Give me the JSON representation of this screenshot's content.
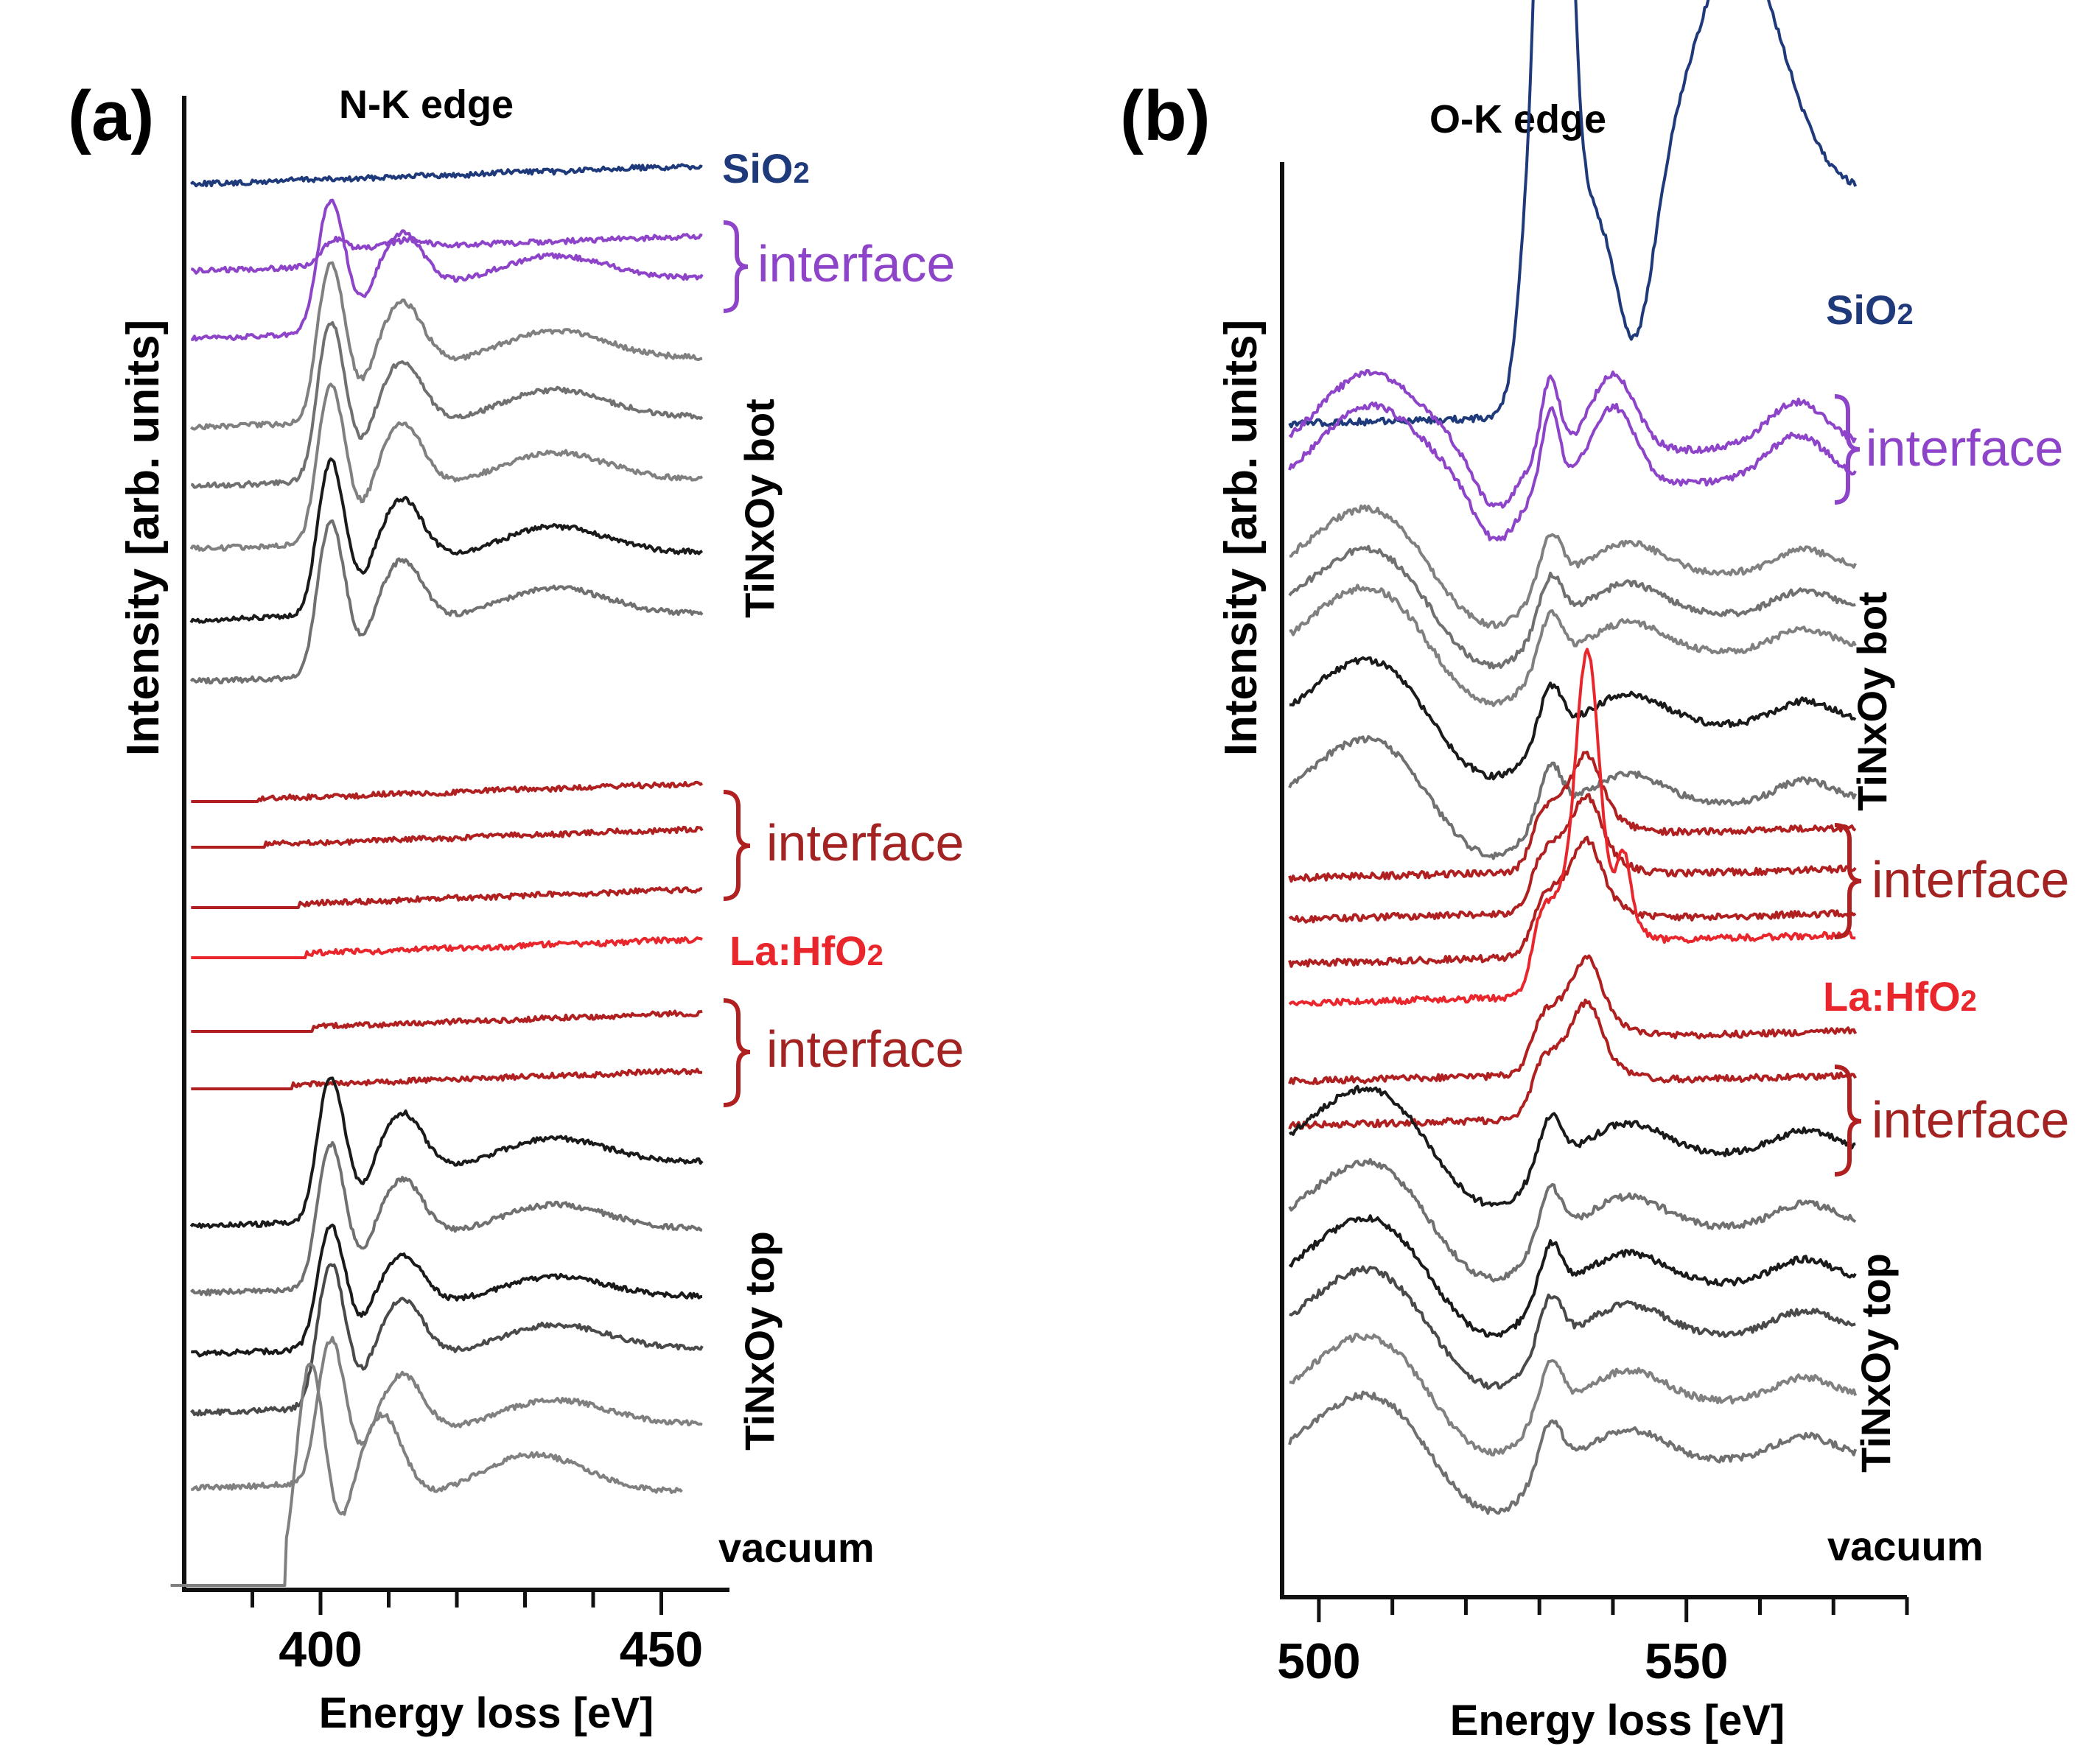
{
  "chart_data": [
    {
      "type": "line",
      "panel": "(a)",
      "title": "N-K edge",
      "xlabel": "Energy loss [eV]",
      "ylabel": "Intensity [arb. units]",
      "xlim": [
        380,
        460
      ],
      "xticks_major": [
        400,
        450
      ],
      "xtick_labels": [
        "400",
        "450"
      ],
      "xticks_minor": [
        390,
        410,
        420,
        430,
        440
      ],
      "series": [
        {
          "name": "SiO2",
          "color": "#1f3a7a",
          "shape": "flat",
          "x_start": 381,
          "x_end": 456,
          "onset": 0
        },
        {
          "name": "interface",
          "color": "#8e44c9",
          "shape": "weak-nk",
          "x_start": 381,
          "x_end": 456,
          "onset": 398
        },
        {
          "name": "interface",
          "color": "#8e44c9",
          "shape": "nk",
          "x_start": 381,
          "x_end": 456,
          "onset": 398
        },
        {
          "name": "TiNxOy bot",
          "color": "#808080",
          "shape": "nk",
          "x_start": 381,
          "x_end": 456,
          "onset": 398
        },
        {
          "name": "TiNxOy bot",
          "color": "#707070",
          "shape": "nk",
          "x_start": 381,
          "x_end": 456,
          "onset": 398
        },
        {
          "name": "TiNxOy bot",
          "color": "#808080",
          "shape": "nk",
          "x_start": 381,
          "x_end": 456,
          "onset": 398
        },
        {
          "name": "TiNxOy bot",
          "color": "#1a1a1a",
          "shape": "nk",
          "x_start": 381,
          "x_end": 456,
          "onset": 398
        },
        {
          "name": "TiNxOy bot",
          "color": "#707070",
          "shape": "nk",
          "x_start": 381,
          "x_end": 456,
          "onset": 398
        },
        {
          "name": "interface",
          "color": "#b02020",
          "shape": "flat",
          "x_start": 381,
          "x_end": 456,
          "onset": 391
        },
        {
          "name": "interface",
          "color": "#b02020",
          "shape": "flat",
          "x_start": 381,
          "x_end": 456,
          "onset": 392
        },
        {
          "name": "interface",
          "color": "#b02020",
          "shape": "flat",
          "x_start": 381,
          "x_end": 456,
          "onset": 397
        },
        {
          "name": "La:HfO2",
          "color": "#e8262c",
          "shape": "flat",
          "x_start": 381,
          "x_end": 456,
          "onset": 398
        },
        {
          "name": "interface",
          "color": "#b02020",
          "shape": "flat",
          "x_start": 381,
          "x_end": 456,
          "onset": 399
        },
        {
          "name": "interface",
          "color": "#b02020",
          "shape": "flat",
          "x_start": 381,
          "x_end": 456,
          "onset": 396
        },
        {
          "name": "TiNxOy top",
          "color": "#1a1a1a",
          "shape": "nk",
          "x_start": 381,
          "x_end": 456,
          "onset": 398
        },
        {
          "name": "TiNxOy top",
          "color": "#707070",
          "shape": "nk",
          "x_start": 381,
          "x_end": 456,
          "onset": 398
        },
        {
          "name": "TiNxOy top",
          "color": "#1a1a1a",
          "shape": "nk",
          "x_start": 381,
          "x_end": 456,
          "onset": 398
        },
        {
          "name": "TiNxOy top",
          "color": "#4a4a4a",
          "shape": "nk",
          "x_start": 381,
          "x_end": 456,
          "onset": 398
        },
        {
          "name": "TiNxOy top",
          "color": "#808080",
          "shape": "nk",
          "x_start": 381,
          "x_end": 456,
          "onset": 398
        },
        {
          "name": "vacuum",
          "color": "#808080",
          "shape": "nk-shift",
          "x_start": 378,
          "x_end": 453,
          "onset": 395
        }
      ],
      "annotations": [
        "SiO2",
        "interface",
        "TiNxOy bot",
        "interface",
        "La:HfO2",
        "interface",
        "TiNxOy top",
        "vacuum"
      ]
    },
    {
      "type": "line",
      "panel": "(b)",
      "title": "O-K edge",
      "xlabel": "Energy loss [eV]",
      "ylabel": "Intensity [arb. units]",
      "xlim": [
        495,
        580
      ],
      "xticks_major": [
        500,
        550
      ],
      "xtick_labels": [
        "500",
        "550"
      ],
      "xticks_minor": [
        510,
        520,
        530,
        540,
        560,
        570,
        580
      ],
      "series": [
        {
          "name": "SiO2",
          "color": "#1f3a7a",
          "shape": "sio2",
          "x_start": 496,
          "x_end": 573,
          "onset": 527
        },
        {
          "name": "interface",
          "color": "#8e44c9",
          "shape": "ok-int",
          "x_start": 496,
          "x_end": 573,
          "onset": 529
        },
        {
          "name": "interface",
          "color": "#8e44c9",
          "shape": "ok-int",
          "x_start": 496,
          "x_end": 573,
          "onset": 529
        },
        {
          "name": "TiNxOy bot",
          "color": "#808080",
          "shape": "ok-tin",
          "x_start": 496,
          "x_end": 573,
          "onset": 529
        },
        {
          "name": "TiNxOy bot",
          "color": "#707070",
          "shape": "ok-tin",
          "x_start": 496,
          "x_end": 573,
          "onset": 529
        },
        {
          "name": "TiNxOy bot",
          "color": "#808080",
          "shape": "ok-tin",
          "x_start": 496,
          "x_end": 573,
          "onset": 529
        },
        {
          "name": "TiNxOy bot",
          "color": "#1a1a1a",
          "shape": "ok-tin",
          "x_start": 496,
          "x_end": 573,
          "onset": 529
        },
        {
          "name": "TiNxOy bot",
          "color": "#707070",
          "shape": "ok-tin",
          "x_start": 496,
          "x_end": 573,
          "onset": 529
        },
        {
          "name": "interface",
          "color": "#b02020",
          "shape": "ok-hf",
          "x_start": 496,
          "x_end": 573,
          "onset": 529
        },
        {
          "name": "interface",
          "color": "#b02020",
          "shape": "ok-hf",
          "x_start": 496,
          "x_end": 573,
          "onset": 529
        },
        {
          "name": "interface",
          "color": "#b02020",
          "shape": "ok-hf",
          "x_start": 496,
          "x_end": 573,
          "onset": 529
        },
        {
          "name": "La:HfO2",
          "color": "#e8262c",
          "shape": "ok-hf-strong",
          "x_start": 496,
          "x_end": 573,
          "onset": 529
        },
        {
          "name": "interface",
          "color": "#b02020",
          "shape": "ok-hf",
          "x_start": 496,
          "x_end": 573,
          "onset": 529
        },
        {
          "name": "interface",
          "color": "#b02020",
          "shape": "ok-hf",
          "x_start": 496,
          "x_end": 573,
          "onset": 529
        },
        {
          "name": "TiNxOy top",
          "color": "#1a1a1a",
          "shape": "ok-tin",
          "x_start": 496,
          "x_end": 573,
          "onset": 529
        },
        {
          "name": "TiNxOy top",
          "color": "#707070",
          "shape": "ok-tin",
          "x_start": 496,
          "x_end": 573,
          "onset": 529
        },
        {
          "name": "TiNxOy top",
          "color": "#1a1a1a",
          "shape": "ok-tin",
          "x_start": 496,
          "x_end": 573,
          "onset": 529
        },
        {
          "name": "TiNxOy top",
          "color": "#4a4a4a",
          "shape": "ok-tin",
          "x_start": 496,
          "x_end": 573,
          "onset": 529
        },
        {
          "name": "TiNxOy top",
          "color": "#808080",
          "shape": "ok-tin",
          "x_start": 496,
          "x_end": 573,
          "onset": 529
        },
        {
          "name": "vacuum",
          "color": "#707070",
          "shape": "ok-tin",
          "x_start": 496,
          "x_end": 573,
          "onset": 529
        }
      ],
      "annotations": [
        "SiO2",
        "interface",
        "TiNxOy bot",
        "interface",
        "La:HfO2",
        "interface",
        "TiNxOy top",
        "vacuum"
      ]
    }
  ],
  "labels": {
    "a": {
      "panel": "(a)",
      "title": "N-K edge",
      "ylabel": "Intensity [arb. units]",
      "xlabel": "Energy loss [eV]",
      "sio2": "SiO",
      "sio2_sub": "2",
      "interface_1": "interface",
      "tin_bot": "TiNxOy bot",
      "interface_2": "interface",
      "lahfo2": "La:HfO",
      "lahfo2_sub": "2",
      "interface_3": "interface",
      "tin_top": "TiNxOy top",
      "vacuum": "vacuum"
    },
    "b": {
      "panel": "(b)",
      "title": "O-K edge",
      "ylabel": "Intensity [arb. units]",
      "xlabel": "Energy loss [eV]",
      "sio2": "SiO",
      "sio2_sub": "2",
      "interface_1": "interface",
      "tin_bot": "TiNxOy bot",
      "interface_2": "interface",
      "lahfo2": "La:HfO",
      "lahfo2_sub": "2",
      "interface_3": "interface",
      "tin_top": "TiNxOy top",
      "vacuum": "vacuum"
    }
  },
  "colors": {
    "sio2": "#1f3a7a",
    "purple": "#8e44c9",
    "darkred": "#b02020",
    "red": "#e8262c",
    "black": "#111111"
  }
}
